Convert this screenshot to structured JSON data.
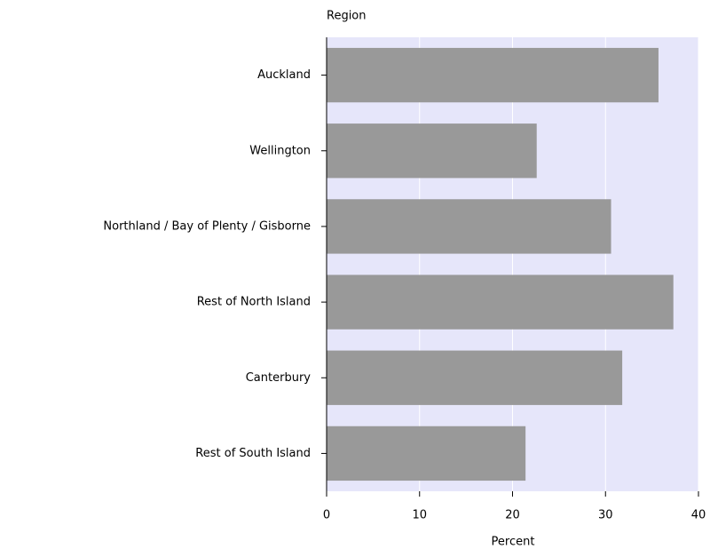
{
  "chart_data": {
    "type": "bar",
    "orientation": "horizontal",
    "y_axis_label": "Region",
    "x_axis_label": "Percent",
    "categories": [
      "Auckland",
      "Wellington",
      "Northland / Bay of Plenty / Gisborne",
      "Rest of North Island",
      "Canterbury",
      "Rest of South Island"
    ],
    "values": [
      35.7,
      22.6,
      30.6,
      37.3,
      31.8,
      21.4
    ],
    "color": "#999999",
    "background": "#e6e6fa",
    "xlim": [
      0,
      40
    ],
    "xticks": [
      0,
      10,
      20,
      30,
      40
    ],
    "grid": true
  }
}
